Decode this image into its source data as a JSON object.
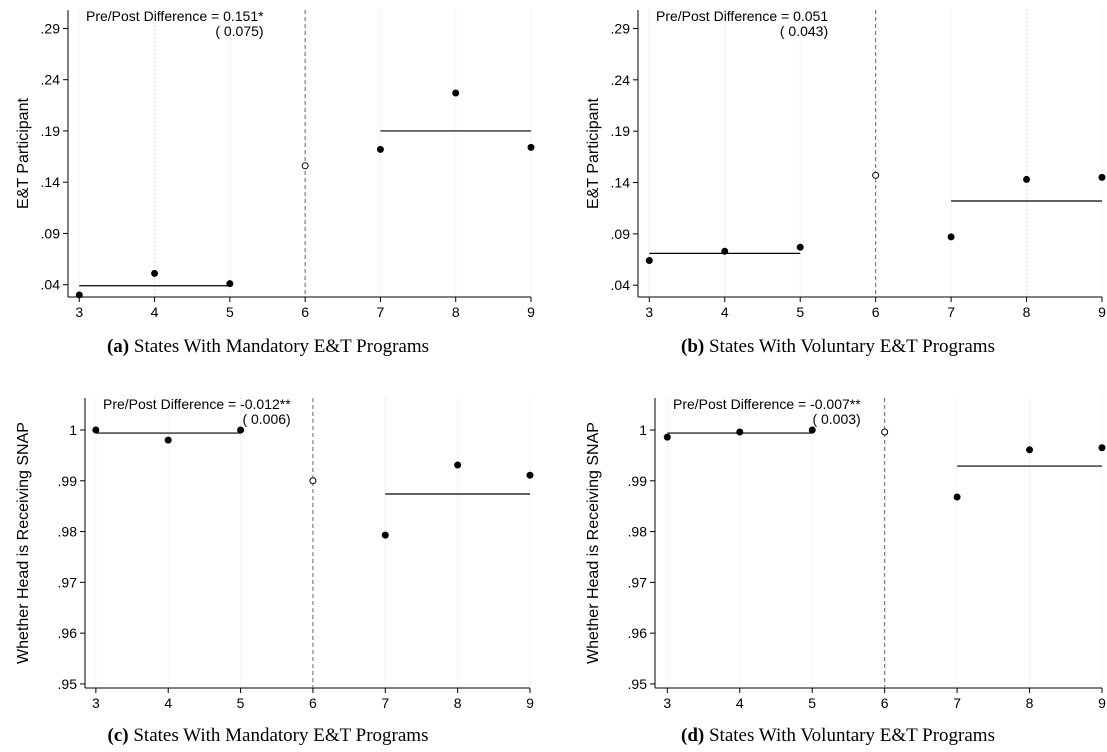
{
  "chart_data": [
    {
      "type": "scatter",
      "caption_label": "(a)",
      "caption": "States With Mandatory E&T Programs",
      "ylabel": "E&T Participant",
      "annotation": [
        "Pre/Post Difference = 0.151*",
        "( 0.075)"
      ],
      "points": {
        "x": [
          3,
          4,
          5,
          7,
          8,
          9
        ],
        "values": [
          0.03,
          0.051,
          0.041,
          0.172,
          0.227,
          0.174
        ]
      },
      "hollow_point": {
        "x": 6,
        "value": 0.156
      },
      "segments": [
        {
          "x": [
            3,
            5
          ],
          "value": 0.039
        },
        {
          "x": [
            7,
            9
          ],
          "value": 0.19
        }
      ],
      "cutoff": 6,
      "xlim": [
        2.85,
        9
      ],
      "ylim": [
        0.028,
        0.308
      ],
      "xticks": [
        3,
        4,
        5,
        6,
        7,
        8,
        9
      ],
      "yticks": [
        {
          "value": 0.04,
          "label": ".04"
        },
        {
          "value": 0.09,
          "label": ".09"
        },
        {
          "value": 0.14,
          "label": ".14"
        },
        {
          "value": 0.19,
          "label": ".19"
        },
        {
          "value": 0.24,
          "label": ".24"
        },
        {
          "value": 0.29,
          "label": ".29"
        }
      ],
      "grid": true,
      "color": "#000000"
    },
    {
      "type": "scatter",
      "caption_label": "(b)",
      "caption": "States With Voluntary E&T Programs",
      "ylabel": "E&T Participant",
      "annotation": [
        "Pre/Post Difference = 0.051",
        "( 0.043)"
      ],
      "points": {
        "x": [
          3,
          4,
          5,
          7,
          8,
          9
        ],
        "values": [
          0.064,
          0.073,
          0.077,
          0.087,
          0.143,
          0.145
        ]
      },
      "hollow_point": {
        "x": 6,
        "value": 0.147
      },
      "segments": [
        {
          "x": [
            3,
            5
          ],
          "value": 0.071
        },
        {
          "x": [
            7,
            9
          ],
          "value": 0.122
        }
      ],
      "cutoff": 6,
      "xlim": [
        2.85,
        9
      ],
      "ylim": [
        0.0285,
        0.308
      ],
      "xticks": [
        3,
        4,
        5,
        6,
        7,
        8,
        9
      ],
      "yticks": [
        {
          "value": 0.04,
          "label": ".04"
        },
        {
          "value": 0.09,
          "label": ".09"
        },
        {
          "value": 0.14,
          "label": ".14"
        },
        {
          "value": 0.19,
          "label": ".19"
        },
        {
          "value": 0.24,
          "label": ".24"
        },
        {
          "value": 0.29,
          "label": ".29"
        }
      ],
      "grid": true,
      "color": "#000000"
    },
    {
      "type": "scatter",
      "caption_label": "(c)",
      "caption": "States With Mandatory E&T Programs",
      "ylabel": "Whether Head is Receiving SNAP",
      "annotation": [
        "Pre/Post Difference = -0.012**",
        "( 0.006)"
      ],
      "points": {
        "x": [
          3,
          4,
          5,
          7,
          8,
          9
        ],
        "values": [
          1.0,
          0.998,
          1.0,
          0.9793,
          0.9931,
          0.9911
        ]
      },
      "hollow_point": {
        "x": 6,
        "value": 0.99
      },
      "segments": [
        {
          "x": [
            3,
            5
          ],
          "value": 0.9994
        },
        {
          "x": [
            7,
            9
          ],
          "value": 0.9874
        }
      ],
      "cutoff": 6,
      "xlim": [
        2.85,
        9
      ],
      "ylim": [
        0.9492,
        1.0063
      ],
      "xticks": [
        3,
        4,
        5,
        6,
        7,
        8,
        9
      ],
      "yticks": [
        {
          "value": 0.95,
          "label": ".95"
        },
        {
          "value": 0.96,
          "label": ".96"
        },
        {
          "value": 0.97,
          "label": ".97"
        },
        {
          "value": 0.98,
          "label": ".98"
        },
        {
          "value": 0.99,
          "label": ".99"
        },
        1
      ],
      "grid": true,
      "color": "#000000"
    },
    {
      "type": "scatter",
      "caption_label": "(d)",
      "caption": "States With Voluntary E&T Programs",
      "ylabel": "Whether Head is Receiving SNAP",
      "annotation": [
        "Pre/Post Difference = -0.007**",
        "( 0.003)"
      ],
      "points": {
        "x": [
          3,
          4,
          5,
          7,
          8,
          9
        ],
        "values": [
          0.9986,
          0.9996,
          1.0,
          0.9868,
          0.9961,
          0.9965
        ]
      },
      "hollow_point": {
        "x": 6,
        "value": 0.9996
      },
      "segments": [
        {
          "x": [
            3,
            5
          ],
          "value": 0.9994
        },
        {
          "x": [
            7,
            9
          ],
          "value": 0.9929
        }
      ],
      "cutoff": 6,
      "xlim": [
        2.83,
        9
      ],
      "ylim": [
        0.9492,
        1.0063
      ],
      "xticks": [
        3,
        4,
        5,
        6,
        7,
        8,
        9
      ],
      "yticks": [
        {
          "value": 0.95,
          "label": ".95"
        },
        {
          "value": 0.96,
          "label": ".96"
        },
        {
          "value": 0.97,
          "label": ".97"
        },
        {
          "value": 0.98,
          "label": ".98"
        },
        {
          "value": 0.99,
          "label": ".99"
        },
        1
      ],
      "grid": true,
      "color": "#000000"
    }
  ]
}
